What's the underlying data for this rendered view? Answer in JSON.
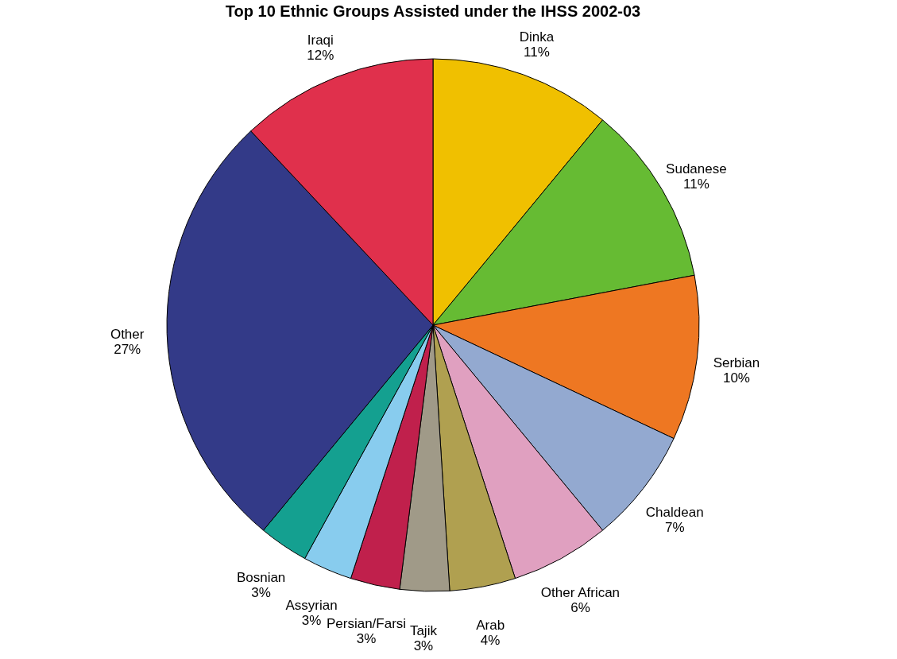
{
  "chart_data": {
    "type": "pie",
    "title": "Top 10 Ethnic Groups Assisted under the IHSS 2002-03",
    "categories": [
      "Dinka",
      "Sudanese",
      "Serbian",
      "Chaldean",
      "Other African",
      "Arab",
      "Tajik",
      "Persian/Farsi",
      "Assyrian",
      "Bosnian",
      "Other",
      "Iraqi"
    ],
    "values": [
      11,
      11,
      10,
      7,
      6,
      4,
      3,
      3,
      3,
      3,
      27,
      12
    ],
    "colors": [
      "#f0c000",
      "#66bb33",
      "#ee7722",
      "#93a9d0",
      "#e0a0c0",
      "#b0a050",
      "#a09a88",
      "#c0204c",
      "#88ccee",
      "#14a090",
      "#333a88",
      "#e0304c"
    ],
    "value_labels": [
      "11%",
      "11%",
      "10%",
      "7%",
      "6%",
      "4%",
      "3%",
      "3%",
      "3%",
      "3%",
      "27%",
      "12%"
    ],
    "legend": false
  }
}
